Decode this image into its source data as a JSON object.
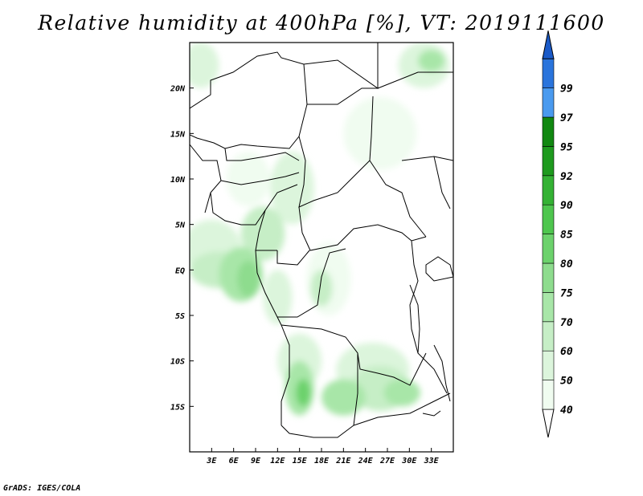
{
  "title": "Relative humidity at 400hPa [%], VT: 2019111600",
  "credit": "GrADS: IGES/COLA",
  "map": {
    "lon_range": [
      0,
      36
    ],
    "lat_range": [
      -20,
      25
    ],
    "x_ticks": [
      {
        "lon": 3,
        "label": "3E"
      },
      {
        "lon": 6,
        "label": "6E"
      },
      {
        "lon": 9,
        "label": "9E"
      },
      {
        "lon": 12,
        "label": "12E"
      },
      {
        "lon": 15,
        "label": "15E"
      },
      {
        "lon": 18,
        "label": "18E"
      },
      {
        "lon": 21,
        "label": "21E"
      },
      {
        "lon": 24,
        "label": "24E"
      },
      {
        "lon": 27,
        "label": "27E"
      },
      {
        "lon": 30,
        "label": "30E"
      },
      {
        "lon": 33,
        "label": "33E"
      }
    ],
    "y_ticks": [
      {
        "lat": 20,
        "label": "20N"
      },
      {
        "lat": 15,
        "label": "15N"
      },
      {
        "lat": 10,
        "label": "10N"
      },
      {
        "lat": 5,
        "label": "5N"
      },
      {
        "lat": 0,
        "label": "EQ"
      },
      {
        "lat": -5,
        "label": "5S"
      },
      {
        "lat": -10,
        "label": "10S"
      },
      {
        "lat": -15,
        "label": "15S"
      }
    ],
    "humidity_patches": [
      {
        "lon": 1.5,
        "lat": 22.5,
        "rx": 2.5,
        "ry": 2.5,
        "level": 50
      },
      {
        "lon": 32,
        "lat": 22.5,
        "rx": 3.5,
        "ry": 2.5,
        "level": 50
      },
      {
        "lon": 33,
        "lat": 23,
        "rx": 1.8,
        "ry": 1.2,
        "level": 70
      },
      {
        "lon": 26,
        "lat": 15,
        "rx": 5,
        "ry": 4,
        "level": 40
      },
      {
        "lon": 8,
        "lat": 10,
        "rx": 3,
        "ry": 3,
        "level": 40
      },
      {
        "lon": 14,
        "lat": 9,
        "rx": 3,
        "ry": 4,
        "level": 50
      },
      {
        "lon": 10,
        "lat": 4,
        "rx": 3,
        "ry": 3,
        "level": 60
      },
      {
        "lon": 3,
        "lat": 2.5,
        "rx": 4,
        "ry": 3,
        "level": 50
      },
      {
        "lon": 4,
        "lat": 0,
        "rx": 4,
        "ry": 2,
        "level": 60
      },
      {
        "lon": 7,
        "lat": -0.5,
        "rx": 3,
        "ry": 3,
        "level": 70
      },
      {
        "lon": 8,
        "lat": -1,
        "rx": 1.5,
        "ry": 2,
        "level": 75
      },
      {
        "lon": 12,
        "lat": -3,
        "rx": 2,
        "ry": 3,
        "level": 50
      },
      {
        "lon": 19,
        "lat": -1,
        "rx": 3,
        "ry": 4,
        "level": 40
      },
      {
        "lon": 18,
        "lat": -2,
        "rx": 1.5,
        "ry": 2,
        "level": 60
      },
      {
        "lon": 15,
        "lat": -10,
        "rx": 3,
        "ry": 3,
        "level": 50
      },
      {
        "lon": 15,
        "lat": -13,
        "rx": 2,
        "ry": 3,
        "level": 70
      },
      {
        "lon": 15.5,
        "lat": -13.5,
        "rx": 1,
        "ry": 1.5,
        "level": 80
      },
      {
        "lon": 25,
        "lat": -11,
        "rx": 5,
        "ry": 3,
        "level": 50
      },
      {
        "lon": 26,
        "lat": -13,
        "rx": 4,
        "ry": 2.5,
        "level": 60
      },
      {
        "lon": 21,
        "lat": -14,
        "rx": 3,
        "ry": 2,
        "level": 70
      },
      {
        "lon": 29,
        "lat": -13.5,
        "rx": 2.5,
        "ry": 1.5,
        "level": 70
      }
    ]
  },
  "colorbar": {
    "levels": [
      {
        "value": "40",
        "color": "#f0fcf0"
      },
      {
        "value": "50",
        "color": "#dcf5dc"
      },
      {
        "value": "60",
        "color": "#c6eec6"
      },
      {
        "value": "70",
        "color": "#a8e6a8"
      },
      {
        "value": "75",
        "color": "#8edc8e"
      },
      {
        "value": "80",
        "color": "#6cd26c"
      },
      {
        "value": "85",
        "color": "#4ec64e"
      },
      {
        "value": "90",
        "color": "#34b234"
      },
      {
        "value": "92",
        "color": "#1e9a1e"
      },
      {
        "value": "95",
        "color": "#118811"
      },
      {
        "value": "97",
        "color": "#4a9aef"
      },
      {
        "value": "99",
        "color": "#2a74dc"
      }
    ],
    "top_color": "#1a5ac8",
    "bottom_color": "#ffffff"
  }
}
